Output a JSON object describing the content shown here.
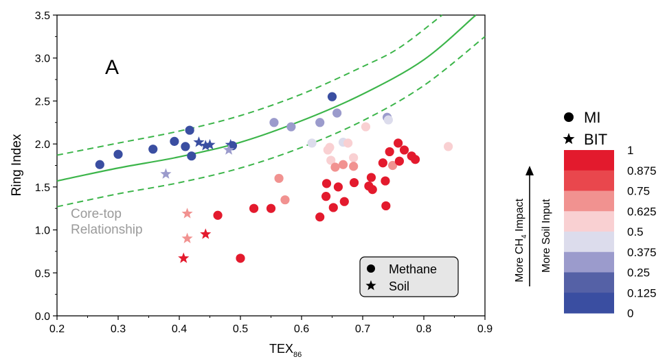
{
  "chart_data": {
    "type": "scatter",
    "panel_label": "A",
    "xlabel": "TEX",
    "xlabel_sub": "86",
    "ylabel": "Ring Index",
    "xlim": [
      0.2,
      0.9
    ],
    "ylim": [
      0.0,
      3.5
    ],
    "xticks": [
      "0.2",
      "0.3",
      "0.4",
      "0.5",
      "0.6",
      "0.7",
      "0.8",
      "0.9"
    ],
    "yticks": [
      "0.0",
      "0.5",
      "1.0",
      "1.5",
      "2.0",
      "2.5",
      "3.0",
      "3.5"
    ],
    "grid": false,
    "annotation": [
      "Core-top",
      "Relationship"
    ],
    "curve_color": "#3cb54a",
    "curves": {
      "center": [
        [
          0.2,
          1.57
        ],
        [
          0.3,
          1.72
        ],
        [
          0.4,
          1.85
        ],
        [
          0.5,
          2.02
        ],
        [
          0.6,
          2.27
        ],
        [
          0.7,
          2.58
        ],
        [
          0.8,
          2.98
        ],
        [
          0.885,
          3.5
        ]
      ],
      "upper": [
        [
          0.2,
          1.87
        ],
        [
          0.3,
          2.01
        ],
        [
          0.4,
          2.15
        ],
        [
          0.5,
          2.33
        ],
        [
          0.6,
          2.58
        ],
        [
          0.7,
          2.9
        ],
        [
          0.76,
          3.12
        ],
        [
          0.83,
          3.5
        ]
      ],
      "lower": [
        [
          0.2,
          1.27
        ],
        [
          0.3,
          1.42
        ],
        [
          0.4,
          1.55
        ],
        [
          0.5,
          1.72
        ],
        [
          0.6,
          1.96
        ],
        [
          0.7,
          2.27
        ],
        [
          0.8,
          2.68
        ],
        [
          0.9,
          3.25
        ]
      ]
    },
    "legend_box": {
      "position": "bottom-right",
      "entries": [
        {
          "marker": "circle",
          "label": "Methane"
        },
        {
          "marker": "star",
          "label": "Soil"
        }
      ]
    },
    "side_legend": [
      {
        "marker": "circle",
        "label": "MI"
      },
      {
        "marker": "star",
        "label": "BIT"
      }
    ],
    "colorbar": {
      "labels": [
        "1",
        "0.875",
        "0.75",
        "0.625",
        "0.5",
        "0.375",
        "0.25",
        "0.125",
        "0"
      ],
      "colors": [
        "#e31a2d",
        "#e9474d",
        "#f19290",
        "#f9d0d2",
        "#dcdcec",
        "#9b9bcc",
        "#5561a6",
        "#3a4ea1"
      ],
      "arrow_labels": [
        "More CH",
        "4",
        " Impact",
        "More Soil Input"
      ]
    },
    "series": [
      {
        "marker": "circle",
        "points": [
          {
            "x": 0.27,
            "y": 1.76,
            "v": 0.0
          },
          {
            "x": 0.3,
            "y": 1.88,
            "v": 0.0
          },
          {
            "x": 0.357,
            "y": 1.94,
            "v": 0.0
          },
          {
            "x": 0.392,
            "y": 2.03,
            "v": 0.0
          },
          {
            "x": 0.41,
            "y": 1.97,
            "v": 0.0
          },
          {
            "x": 0.417,
            "y": 2.16,
            "v": 0.0
          },
          {
            "x": 0.42,
            "y": 1.86,
            "v": 0.0
          },
          {
            "x": 0.487,
            "y": 1.98,
            "v": 0.0
          },
          {
            "x": 0.65,
            "y": 2.55,
            "v": 0.0
          },
          {
            "x": 0.555,
            "y": 2.25,
            "v": 0.3
          },
          {
            "x": 0.583,
            "y": 2.2,
            "v": 0.3
          },
          {
            "x": 0.63,
            "y": 2.25,
            "v": 0.3
          },
          {
            "x": 0.658,
            "y": 2.36,
            "v": 0.3
          },
          {
            "x": 0.74,
            "y": 2.31,
            "v": 0.3
          },
          {
            "x": 0.617,
            "y": 2.01,
            "v": 0.42
          },
          {
            "x": 0.668,
            "y": 2.02,
            "v": 0.42
          },
          {
            "x": 0.742,
            "y": 2.28,
            "v": 0.42
          },
          {
            "x": 0.643,
            "y": 1.93,
            "v": 0.55
          },
          {
            "x": 0.646,
            "y": 1.96,
            "v": 0.55
          },
          {
            "x": 0.648,
            "y": 1.81,
            "v": 0.55
          },
          {
            "x": 0.676,
            "y": 2.01,
            "v": 0.55
          },
          {
            "x": 0.705,
            "y": 2.2,
            "v": 0.55
          },
          {
            "x": 0.84,
            "y": 1.97,
            "v": 0.55
          },
          {
            "x": 0.685,
            "y": 1.84,
            "v": 0.55
          },
          {
            "x": 0.563,
            "y": 1.6,
            "v": 0.68
          },
          {
            "x": 0.573,
            "y": 1.35,
            "v": 0.68
          },
          {
            "x": 0.655,
            "y": 1.73,
            "v": 0.68
          },
          {
            "x": 0.668,
            "y": 1.76,
            "v": 0.68
          },
          {
            "x": 0.685,
            "y": 1.74,
            "v": 0.68
          },
          {
            "x": 0.749,
            "y": 1.75,
            "v": 0.68
          },
          {
            "x": 0.463,
            "y": 1.17,
            "v": 1.0
          },
          {
            "x": 0.5,
            "y": 0.67,
            "v": 1.0
          },
          {
            "x": 0.522,
            "y": 1.25,
            "v": 1.0
          },
          {
            "x": 0.55,
            "y": 1.25,
            "v": 1.0
          },
          {
            "x": 0.63,
            "y": 1.15,
            "v": 1.0
          },
          {
            "x": 0.64,
            "y": 1.39,
            "v": 1.0
          },
          {
            "x": 0.641,
            "y": 1.54,
            "v": 1.0
          },
          {
            "x": 0.652,
            "y": 1.26,
            "v": 1.0
          },
          {
            "x": 0.66,
            "y": 1.5,
            "v": 1.0
          },
          {
            "x": 0.67,
            "y": 1.33,
            "v": 1.0
          },
          {
            "x": 0.686,
            "y": 1.55,
            "v": 1.0
          },
          {
            "x": 0.71,
            "y": 1.51,
            "v": 1.0
          },
          {
            "x": 0.714,
            "y": 1.61,
            "v": 1.0
          },
          {
            "x": 0.716,
            "y": 1.47,
            "v": 1.0
          },
          {
            "x": 0.733,
            "y": 1.78,
            "v": 1.0
          },
          {
            "x": 0.737,
            "y": 1.57,
            "v": 1.0
          },
          {
            "x": 0.738,
            "y": 1.28,
            "v": 1.0
          },
          {
            "x": 0.744,
            "y": 1.91,
            "v": 1.0
          },
          {
            "x": 0.758,
            "y": 2.01,
            "v": 1.0
          },
          {
            "x": 0.768,
            "y": 1.93,
            "v": 1.0
          },
          {
            "x": 0.76,
            "y": 1.8,
            "v": 1.0
          },
          {
            "x": 0.78,
            "y": 1.86,
            "v": 1.0
          },
          {
            "x": 0.786,
            "y": 1.82,
            "v": 1.0
          }
        ]
      },
      {
        "marker": "star",
        "points": [
          {
            "x": 0.432,
            "y": 2.02,
            "v": 0.0
          },
          {
            "x": 0.443,
            "y": 1.98,
            "v": 0.0
          },
          {
            "x": 0.45,
            "y": 1.99,
            "v": 0.0
          },
          {
            "x": 0.484,
            "y": 1.99,
            "v": 0.0
          },
          {
            "x": 0.378,
            "y": 1.65,
            "v": 0.3
          },
          {
            "x": 0.481,
            "y": 1.93,
            "v": 0.3
          },
          {
            "x": 0.413,
            "y": 1.19,
            "v": 0.68
          },
          {
            "x": 0.413,
            "y": 0.9,
            "v": 0.68
          },
          {
            "x": 0.443,
            "y": 0.95,
            "v": 1.0
          },
          {
            "x": 0.407,
            "y": 0.67,
            "v": 1.0
          }
        ]
      }
    ]
  }
}
